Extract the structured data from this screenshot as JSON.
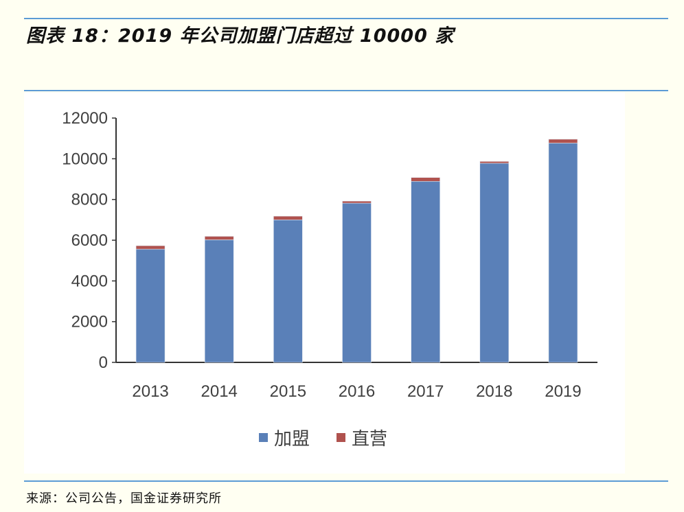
{
  "title": "图表 18：2019 年公司加盟门店超过 10000 家",
  "source": "来源：公司公告，国金证券研究所",
  "colors": {
    "franchise": "#5a80b8",
    "direct": "#b0524e",
    "rule": "#5b9bd5"
  },
  "chart_data": {
    "type": "bar",
    "stacked": true,
    "title": "2019 年公司加盟门店超过 10000 家",
    "xlabel": "",
    "ylabel": "",
    "ylim": [
      0,
      12000
    ],
    "yticks": [
      0,
      2000,
      4000,
      6000,
      8000,
      10000,
      12000
    ],
    "grid": false,
    "legend_position": "bottom",
    "categories": [
      "2013",
      "2014",
      "2015",
      "2016",
      "2017",
      "2018",
      "2019"
    ],
    "series": [
      {
        "name": "加盟",
        "values": [
          5560,
          6020,
          7000,
          7820,
          8890,
          9780,
          10770
        ]
      },
      {
        "name": "直营",
        "values": [
          170,
          170,
          180,
          100,
          190,
          90,
          190
        ]
      }
    ]
  }
}
